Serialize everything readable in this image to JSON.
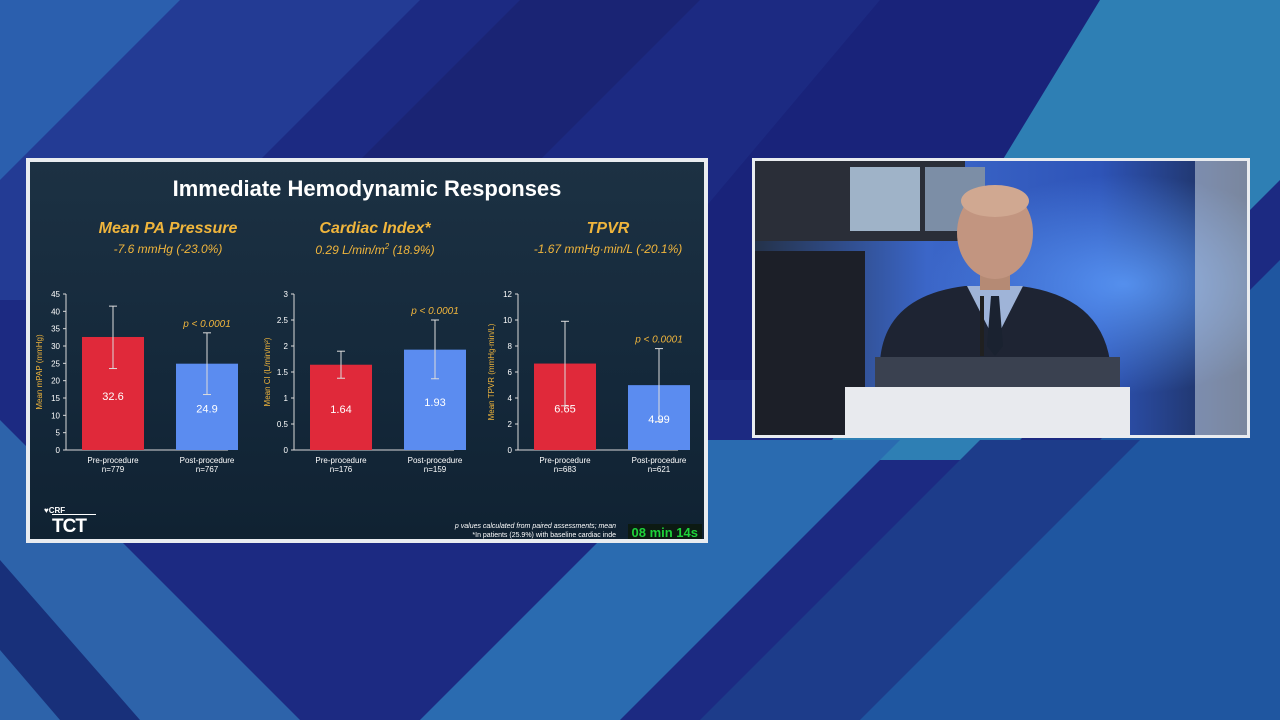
{
  "slide": {
    "title": "Immediate Hemodynamic Responses",
    "timer": "08 min 14s",
    "footnote_line1": "p values calculated from paired assessments; mean",
    "footnote_line2": "*In patients (25.9%) with baseline cardiac inde",
    "logo_crf": "CRF",
    "logo_tct": "TCT",
    "panels": [
      {
        "title": "Mean PA Pressure",
        "subtitle": "-7.6 mmHg (-23.0%)"
      },
      {
        "title": "Cardiac Index*",
        "subtitle_main": "0.29 L/min/m",
        "subtitle_sup": "2",
        "subtitle_tail": " (18.9%)"
      },
      {
        "title": "TPVR",
        "subtitle": "-1.67 mmHg·min/L (-20.1%)"
      }
    ]
  },
  "chart_data": [
    {
      "type": "bar",
      "title": "Mean PA Pressure",
      "ylabel": "Mean mPAP (mmHg)",
      "ylim": [
        0,
        45
      ],
      "yticks": [
        "0",
        "5",
        "10",
        "15",
        "20",
        "25",
        "30",
        "35",
        "40",
        "45"
      ],
      "categories": [
        "Pre-procedure",
        "Post-procedure"
      ],
      "n_labels": [
        "n=779",
        "n=767"
      ],
      "values": [
        32.6,
        24.9
      ],
      "value_labels": [
        "32.6",
        "24.9"
      ],
      "error_low": [
        23.5,
        16.0
      ],
      "error_high": [
        41.5,
        33.8
      ],
      "colors": [
        "#e0293a",
        "#5b8cf0"
      ],
      "p_value": "p < 0.0001"
    },
    {
      "type": "bar",
      "title": "Cardiac Index*",
      "ylabel": "Mean CI (L/min/m²)",
      "ylim": [
        0,
        3
      ],
      "yticks": [
        "0",
        "0.5",
        "1",
        "1.5",
        "2",
        "2.5",
        "3"
      ],
      "categories": [
        "Pre-procedure",
        "Post-procedure"
      ],
      "n_labels": [
        "n=176",
        "n=159"
      ],
      "values": [
        1.64,
        1.93
      ],
      "value_labels": [
        "1.64",
        "1.93"
      ],
      "error_low": [
        1.38,
        1.37
      ],
      "error_high": [
        1.9,
        2.5
      ],
      "colors": [
        "#e0293a",
        "#5b8cf0"
      ],
      "p_value": "p < 0.0001"
    },
    {
      "type": "bar",
      "title": "TPVR",
      "ylabel": "Mean TPVR (mmHg·min/L)",
      "ylim": [
        0,
        12
      ],
      "yticks": [
        "0",
        "2",
        "4",
        "6",
        "8",
        "10",
        "12"
      ],
      "categories": [
        "Pre-procedure",
        "Post-procedure"
      ],
      "n_labels": [
        "n=683",
        "n=621"
      ],
      "values": [
        6.65,
        4.99
      ],
      "value_labels": [
        "6.65",
        "4.99"
      ],
      "error_low": [
        3.4,
        2.2
      ],
      "error_high": [
        9.9,
        7.8
      ],
      "colors": [
        "#e0293a",
        "#5b8cf0"
      ],
      "p_value": "p < 0.0001"
    }
  ]
}
